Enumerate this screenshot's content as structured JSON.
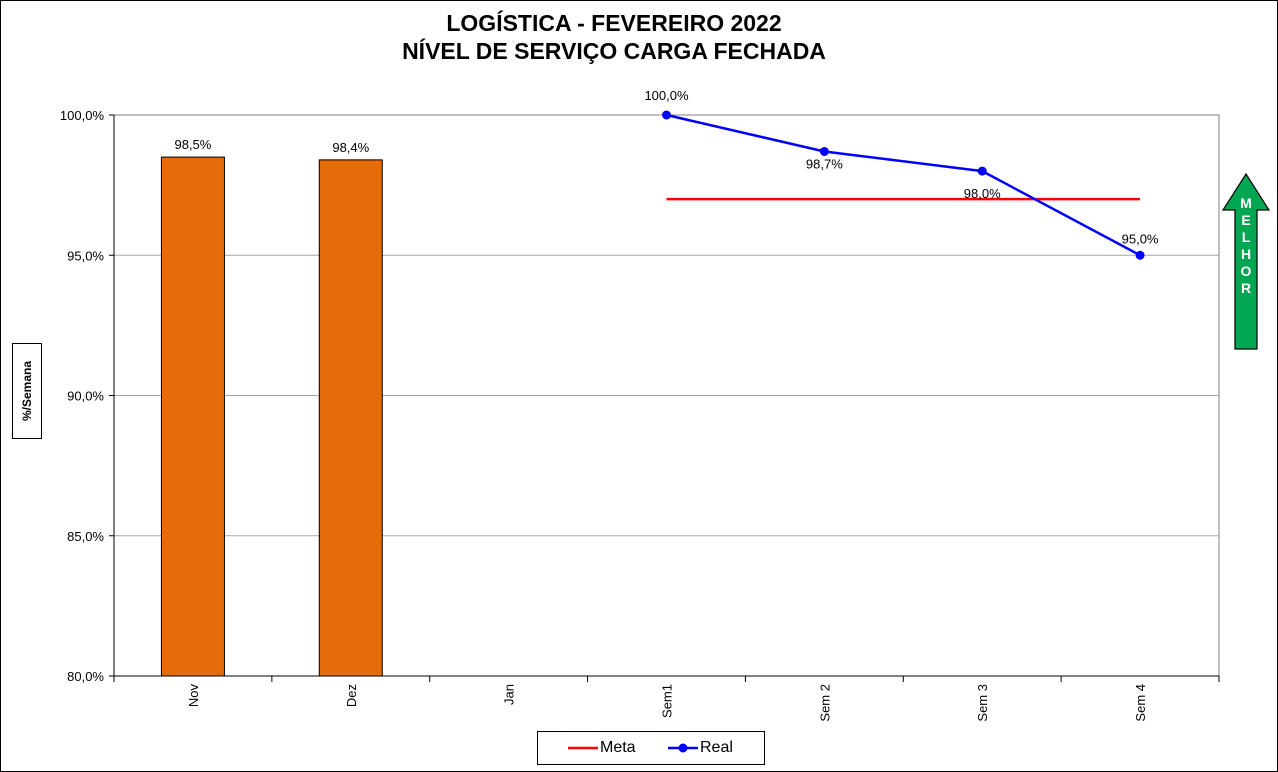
{
  "title_lines": [
    "LOGÍSTICA - FEVEREIRO 2022",
    "NÍVEL DE SERVIÇO CARGA FECHADA"
  ],
  "better_letters": [
    "M",
    "E",
    "L",
    "H",
    "O",
    "R"
  ],
  "colors": {
    "bar": "#E46C0A",
    "meta": "#FF0000",
    "real": "#0000FF",
    "arrow": "#00A651",
    "grid": "#A6A6A6"
  },
  "chart_data": {
    "type": "bar+line",
    "title": "LOGÍSTICA - FEVEREIRO 2022 NÍVEL DE SERVIÇO CARGA FECHADA",
    "ylabel": "%/Semana",
    "xlabel": "",
    "categories": [
      "Nov",
      "Dez",
      "Jan",
      "Sem1",
      "Sem 2",
      "Sem 3",
      "Sem 4"
    ],
    "ylim": [
      80,
      100
    ],
    "yticks": [
      80,
      85,
      90,
      95,
      100
    ],
    "ytick_labels": [
      "80,0%",
      "85,0%",
      "90,0%",
      "95,0%",
      "100,0%"
    ],
    "grid": true,
    "legend_position": "bottom",
    "bars": {
      "values": [
        98.5,
        98.4,
        null,
        null,
        null,
        null,
        null
      ],
      "labels": [
        "98,5%",
        "98,4%",
        "",
        "",
        "",
        "",
        ""
      ]
    },
    "series": [
      {
        "name": "Meta",
        "type": "line",
        "values": [
          null,
          null,
          null,
          97,
          97,
          97,
          97
        ],
        "labels": [
          "",
          "",
          "",
          "",
          "",
          "",
          ""
        ]
      },
      {
        "name": "Real",
        "type": "line-marker",
        "values": [
          null,
          null,
          null,
          100,
          98.7,
          98.0,
          95.0
        ],
        "labels": [
          "",
          "",
          "",
          "100,0%",
          "98,7%",
          "98,0%",
          "95,0%"
        ]
      }
    ]
  }
}
